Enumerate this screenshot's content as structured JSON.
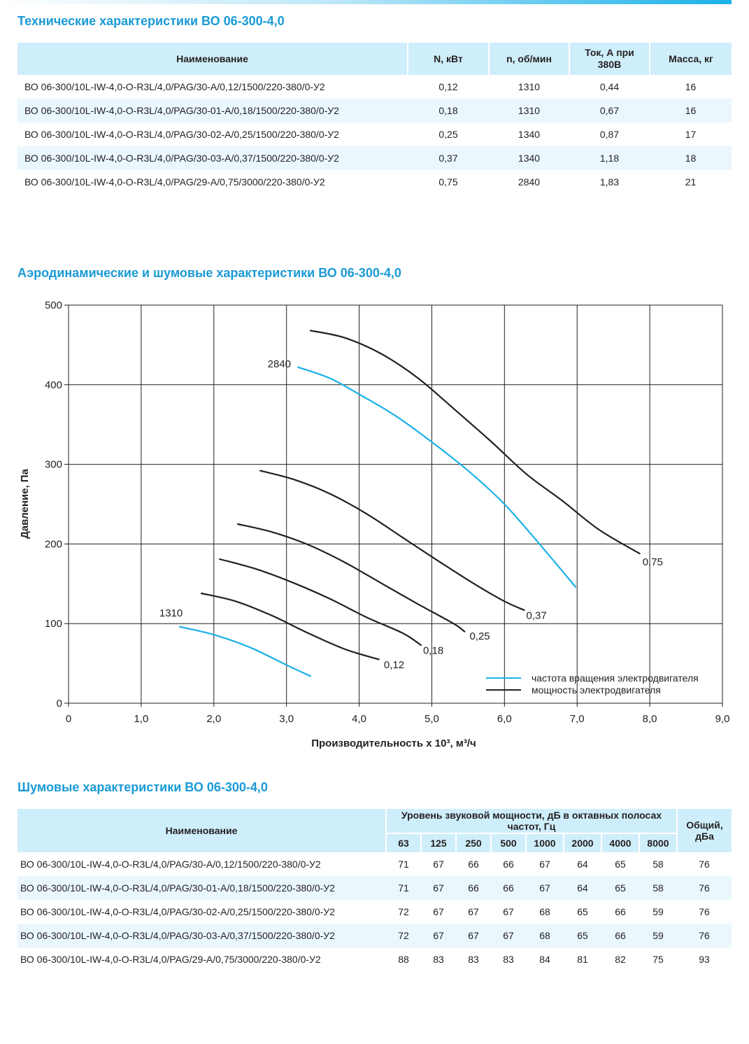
{
  "tech": {
    "title": "Технические характеристики ВО 06-300-4,0",
    "headers": [
      "Наименование",
      "N, кВт",
      "n, об/мин",
      "Ток, А при 380В",
      "Масса, кг"
    ],
    "rows": [
      [
        "ВО 06-300/10L-IW-4,0-O-R3L/4,0/PAG/30-А/0,12/1500/220-380/0-У2",
        "0,12",
        "1310",
        "0,44",
        "16"
      ],
      [
        "ВО 06-300/10L-IW-4,0-O-R3L/4,0/PAG/30-01-А/0,18/1500/220-380/0-У2",
        "0,18",
        "1310",
        "0,67",
        "16"
      ],
      [
        "ВО 06-300/10L-IW-4,0-O-R3L/4,0/PAG/30-02-А/0,25/1500/220-380/0-У2",
        "0,25",
        "1340",
        "0,87",
        "17"
      ],
      [
        "ВО 06-300/10L-IW-4,0-O-R3L/4,0/PAG/30-03-А/0,37/1500/220-380/0-У2",
        "0,37",
        "1340",
        "1,18",
        "18"
      ],
      [
        "ВО 06-300/10L-IW-4,0-O-R3L/4,0/PAG/29-А/0,75/3000/220-380/0-У2",
        "0,75",
        "2840",
        "1,83",
        "21"
      ]
    ]
  },
  "aero": {
    "title": "Аэродинамические и шумовые характеристики ВО 06-300-4,0"
  },
  "chart_data": {
    "type": "line",
    "xlabel": "Производительность x 10³, м³/ч",
    "ylabel": "Давление, Па",
    "xlim": [
      0,
      9
    ],
    "ylim": [
      0,
      500
    ],
    "xticks": [
      0,
      1,
      2,
      3,
      4,
      5,
      6,
      7,
      8,
      9
    ],
    "xtick_labels": [
      "0",
      "1,0",
      "2,0",
      "3,0",
      "4,0",
      "5,0",
      "6,0",
      "7,0",
      "8,0",
      "9,0"
    ],
    "yticks": [
      0,
      100,
      200,
      300,
      400,
      500
    ],
    "ytick_labels": [
      "0",
      "100",
      "200",
      "300",
      "400",
      "500"
    ],
    "grid": true,
    "legend_position": "bottom-right",
    "legend": [
      {
        "label": "частота вращения электродвигателя",
        "color": "#1ab0e8"
      },
      {
        "label": "мощность электродвигателя",
        "color": "#231f20"
      }
    ],
    "series": [
      {
        "name": "1310",
        "kind": "speed",
        "color": "#1ab0e8",
        "x": [
          1.53,
          2.0,
          2.5,
          3.0,
          3.33
        ],
        "y": [
          96,
          86,
          70,
          48,
          34
        ]
      },
      {
        "name": "0,12",
        "kind": "power",
        "color": "#231f20",
        "x": [
          1.83,
          2.3,
          2.8,
          3.3,
          3.8,
          4.27
        ],
        "y": [
          138,
          128,
          110,
          88,
          68,
          55
        ]
      },
      {
        "name": "0,18",
        "kind": "power",
        "color": "#231f20",
        "x": [
          2.08,
          2.6,
          3.1,
          3.6,
          4.1,
          4.6,
          4.85
        ],
        "y": [
          181,
          168,
          151,
          131,
          108,
          88,
          73
        ]
      },
      {
        "name": "0,25",
        "kind": "power",
        "color": "#231f20",
        "x": [
          2.33,
          2.8,
          3.3,
          3.8,
          4.3,
          4.8,
          5.3,
          5.45
        ],
        "y": [
          225,
          215,
          199,
          177,
          151,
          125,
          100,
          90
        ]
      },
      {
        "name": "0,37",
        "kind": "power",
        "color": "#231f20",
        "x": [
          2.64,
          3.1,
          3.6,
          4.1,
          4.6,
          5.1,
          5.6,
          6.0,
          6.27
        ],
        "y": [
          292,
          281,
          263,
          238,
          208,
          178,
          149,
          128,
          117
        ]
      },
      {
        "name": "2840",
        "kind": "speed",
        "color": "#1ab0e8",
        "x": [
          3.16,
          3.6,
          4.0,
          4.5,
          5.0,
          5.5,
          6.0,
          6.5,
          6.98
        ],
        "y": [
          422,
          408,
          388,
          361,
          328,
          292,
          250,
          198,
          146
        ]
      },
      {
        "name": "0,75",
        "kind": "power",
        "color": "#231f20",
        "x": [
          3.33,
          3.8,
          4.3,
          4.8,
          5.3,
          5.8,
          6.3,
          6.8,
          7.3,
          7.86
        ],
        "y": [
          468,
          459,
          439,
          409,
          370,
          330,
          288,
          254,
          218,
          188
        ]
      }
    ],
    "curve_labels": [
      {
        "text": "1310",
        "x": 1.25,
        "y": 109
      },
      {
        "text": "0,12",
        "x": 4.34,
        "y": 44
      },
      {
        "text": "0,18",
        "x": 4.88,
        "y": 62
      },
      {
        "text": "0,25",
        "x": 5.52,
        "y": 80
      },
      {
        "text": "0,37",
        "x": 6.3,
        "y": 106
      },
      {
        "text": "2840",
        "x": 2.74,
        "y": 422
      },
      {
        "text": "0,75",
        "x": 7.9,
        "y": 173
      }
    ]
  },
  "noise": {
    "title": "Шумовые характеристики ВО 06-300-4,0",
    "name_header": "Наименование",
    "group_header": "Уровень звуковой мощности, дБ в октавных полосах частот, Гц",
    "total_header": "Общий, дБа",
    "freqs": [
      "63",
      "125",
      "250",
      "500",
      "1000",
      "2000",
      "4000",
      "8000"
    ],
    "rows": [
      [
        "ВО 06-300/10L-IW-4,0-O-R3L/4,0/PAG/30-А/0,12/1500/220-380/0-У2",
        "71",
        "67",
        "66",
        "66",
        "67",
        "64",
        "65",
        "58",
        "76"
      ],
      [
        "ВО 06-300/10L-IW-4,0-O-R3L/4,0/PAG/30-01-А/0,18/1500/220-380/0-У2",
        "71",
        "67",
        "66",
        "66",
        "67",
        "64",
        "65",
        "58",
        "76"
      ],
      [
        "ВО 06-300/10L-IW-4,0-O-R3L/4,0/PAG/30-02-А/0,25/1500/220-380/0-У2",
        "72",
        "67",
        "67",
        "67",
        "68",
        "65",
        "66",
        "59",
        "76"
      ],
      [
        "ВО 06-300/10L-IW-4,0-O-R3L/4,0/PAG/30-03-А/0,37/1500/220-380/0-У2",
        "72",
        "67",
        "67",
        "67",
        "68",
        "65",
        "66",
        "59",
        "76"
      ],
      [
        "ВО 06-300/10L-IW-4,0-O-R3L/4,0/PAG/29-А/0,75/3000/220-380/0-У2",
        "88",
        "83",
        "83",
        "83",
        "84",
        "81",
        "82",
        "75",
        "93"
      ]
    ]
  }
}
